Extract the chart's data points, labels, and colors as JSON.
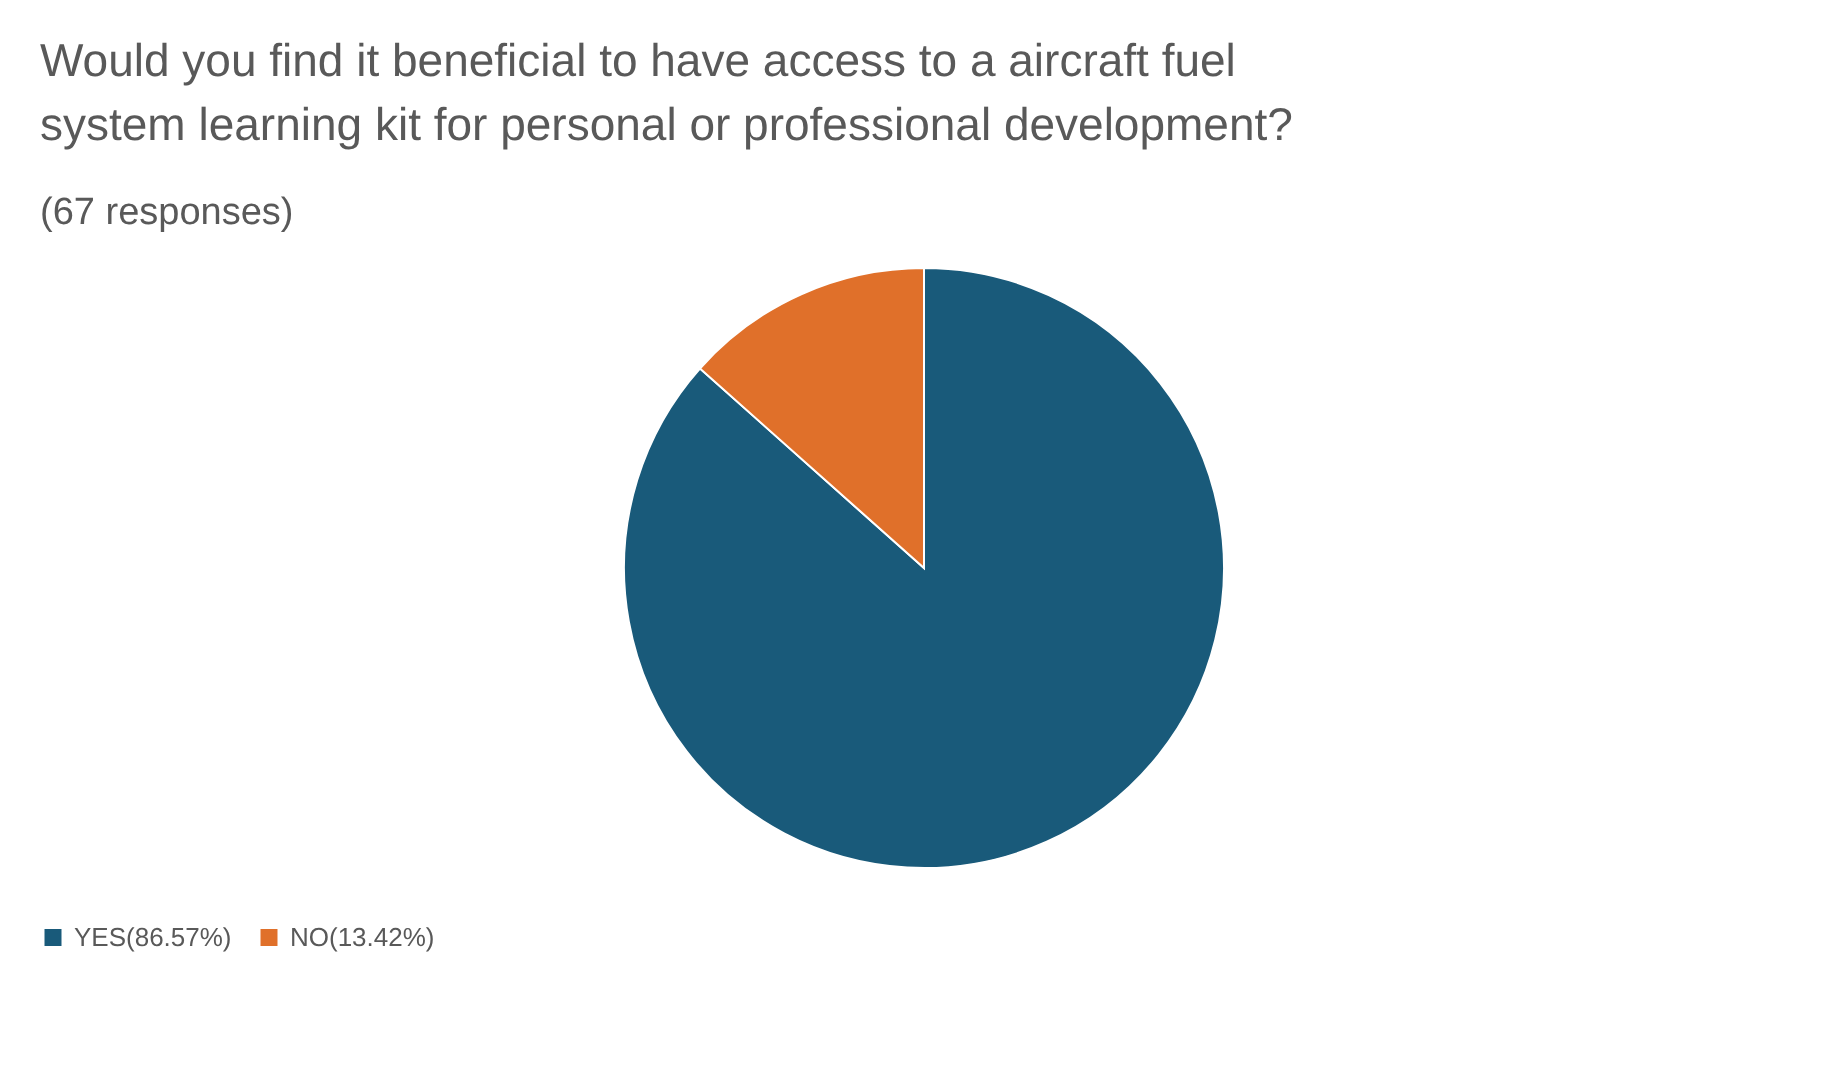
{
  "chart_data": {
    "type": "pie",
    "title": "Would you find it beneficial to have access to a aircraft fuel system learning kit for personal or professional development?",
    "subtitle": "(67 responses)",
    "categories": [
      "YES(86.57%)",
      "NO(13.42%)"
    ],
    "values": [
      86.57,
      13.42
    ],
    "colors": [
      "#195a7a",
      "#e0702a"
    ],
    "legend": "bottom"
  }
}
